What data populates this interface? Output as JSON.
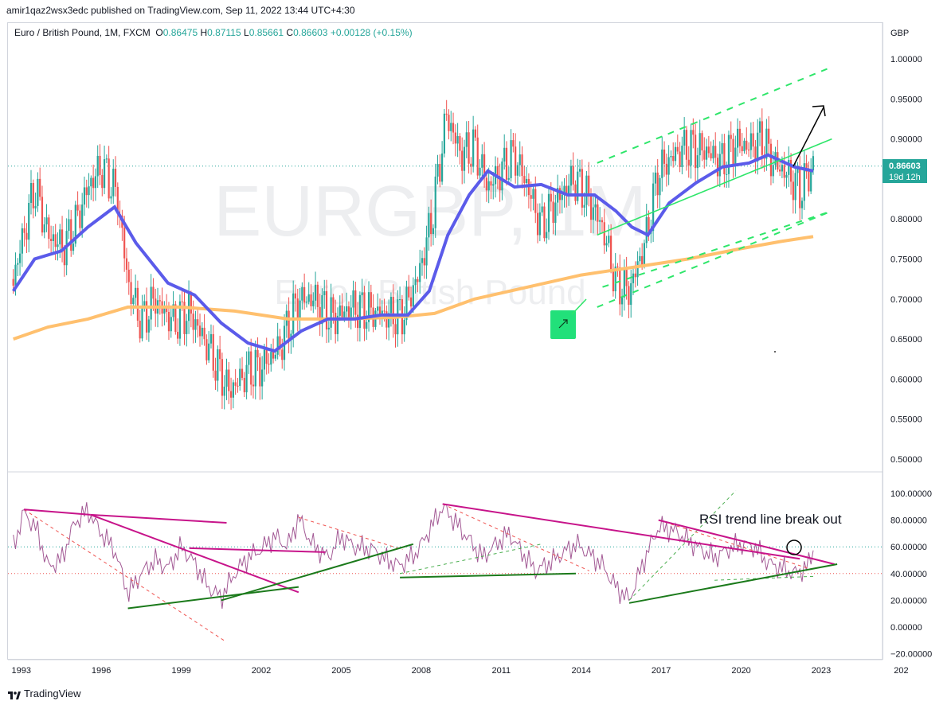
{
  "header": {
    "published": "amir1qaz2wsx3edc published on TradingView.com, Sep 11, 2022 13:44 UTC+4:30"
  },
  "symbol": {
    "name": "Euro / British Pound, 1M, FXCM",
    "o_label": "O",
    "o": "0.86475",
    "h_label": "H",
    "h": "0.87115",
    "l_label": "L",
    "l": "0.85661",
    "c_label": "C",
    "c": "0.86603",
    "change": "+0.00128 (+0.15%)"
  },
  "watermark": {
    "ticker": "EURGBP, 1M",
    "description": "Euro / British Pound"
  },
  "price_axis": {
    "currency": "GBP",
    "ticks": [
      "1.00000",
      "0.95000",
      "0.90000",
      "0.85000",
      "0.80000",
      "0.75000",
      "0.70000",
      "0.65000",
      "0.60000",
      "0.55000",
      "0.50000"
    ],
    "last_price": "0.86603",
    "countdown": "19d 12h"
  },
  "rsi_axis": {
    "ticks": [
      "100.00000",
      "80.00000",
      "60.00000",
      "40.00000",
      "20.00000",
      "0.00000",
      "−20.00000"
    ]
  },
  "time_axis": {
    "ticks": [
      "1993",
      "1996",
      "1999",
      "2002",
      "2005",
      "2008",
      "2011",
      "2014",
      "2017",
      "2020",
      "2023",
      "202"
    ]
  },
  "annotation": {
    "text": "RSI trend line break out"
  },
  "footer": {
    "brand": "TradingView"
  },
  "colors": {
    "up": "#26a69a",
    "down": "#ef5350",
    "ma_fast": "#5b5bea",
    "ma_slow": "#ffc06e",
    "channel": "#2ee66a",
    "rsi_line": "#a35a95",
    "trend_magenta": "#c7148a",
    "trend_green": "#1b7a1b",
    "label_bg": "#26a69a"
  },
  "chart_data": [
    {
      "type": "candlestick",
      "title": "Euro / British Pound, 1M, FXCM",
      "ylabel": "GBP",
      "ylim": [
        0.48,
        1.05
      ],
      "ma_periods_note": "",
      "price_path": [
        [
          1992.7,
          0.725
        ],
        [
          1993.5,
          0.84
        ],
        [
          1994.0,
          0.78
        ],
        [
          1994.6,
          0.765
        ],
        [
          1995.0,
          0.79
        ],
        [
          1995.5,
          0.84
        ],
        [
          1996.0,
          0.865
        ],
        [
          1996.6,
          0.83
        ],
        [
          1997.0,
          0.72
        ],
        [
          1997.5,
          0.67
        ],
        [
          1998.0,
          0.7
        ],
        [
          1998.7,
          0.67
        ],
        [
          1999.3,
          0.685
        ],
        [
          2000.0,
          0.64
        ],
        [
          2000.8,
          0.585
        ],
        [
          2001.5,
          0.61
        ],
        [
          2002.0,
          0.615
        ],
        [
          2002.7,
          0.64
        ],
        [
          2003.4,
          0.7
        ],
        [
          2004.0,
          0.7
        ],
        [
          2004.7,
          0.675
        ],
        [
          2005.4,
          0.69
        ],
        [
          2006.0,
          0.685
        ],
        [
          2006.7,
          0.68
        ],
        [
          2007.3,
          0.68
        ],
        [
          2007.9,
          0.73
        ],
        [
          2008.4,
          0.8
        ],
        [
          2008.95,
          0.93
        ],
        [
          2009.5,
          0.88
        ],
        [
          2010.0,
          0.89
        ],
        [
          2010.5,
          0.84
        ],
        [
          2011.0,
          0.86
        ],
        [
          2011.5,
          0.88
        ],
        [
          2012.0,
          0.84
        ],
        [
          2012.5,
          0.79
        ],
        [
          2013.0,
          0.82
        ],
        [
          2013.7,
          0.85
        ],
        [
          2014.2,
          0.83
        ],
        [
          2014.8,
          0.79
        ],
        [
          2015.3,
          0.72
        ],
        [
          2015.8,
          0.71
        ],
        [
          2016.4,
          0.77
        ],
        [
          2016.9,
          0.86
        ],
        [
          2017.5,
          0.88
        ],
        [
          2018.0,
          0.89
        ],
        [
          2018.7,
          0.885
        ],
        [
          2019.3,
          0.87
        ],
        [
          2019.8,
          0.895
        ],
        [
          2020.3,
          0.89
        ],
        [
          2020.8,
          0.9
        ],
        [
          2021.2,
          0.87
        ],
        [
          2021.8,
          0.855
        ],
        [
          2022.2,
          0.835
        ],
        [
          2022.7,
          0.866
        ]
      ],
      "ma_fast": [
        [
          1992.7,
          0.71
        ],
        [
          1993.5,
          0.75
        ],
        [
          1994.5,
          0.76
        ],
        [
          1995.5,
          0.79
        ],
        [
          1996.5,
          0.815
        ],
        [
          1997.3,
          0.77
        ],
        [
          1998.5,
          0.72
        ],
        [
          1999.5,
          0.705
        ],
        [
          2000.5,
          0.67
        ],
        [
          2001.5,
          0.645
        ],
        [
          2002.5,
          0.635
        ],
        [
          2003.5,
          0.66
        ],
        [
          2004.5,
          0.675
        ],
        [
          2005.5,
          0.675
        ],
        [
          2006.5,
          0.68
        ],
        [
          2007.5,
          0.68
        ],
        [
          2008.3,
          0.71
        ],
        [
          2009.0,
          0.78
        ],
        [
          2009.8,
          0.83
        ],
        [
          2010.5,
          0.86
        ],
        [
          2011.5,
          0.84
        ],
        [
          2012.5,
          0.843
        ],
        [
          2013.5,
          0.83
        ],
        [
          2014.5,
          0.83
        ],
        [
          2015.3,
          0.81
        ],
        [
          2015.9,
          0.79
        ],
        [
          2016.5,
          0.78
        ],
        [
          2017.3,
          0.82
        ],
        [
          2018.3,
          0.845
        ],
        [
          2019.3,
          0.865
        ],
        [
          2020.3,
          0.87
        ],
        [
          2021.0,
          0.88
        ],
        [
          2022.0,
          0.865
        ],
        [
          2022.7,
          0.86
        ]
      ],
      "ma_slow": [
        [
          1992.7,
          0.65
        ],
        [
          1994.0,
          0.665
        ],
        [
          1995.5,
          0.675
        ],
        [
          1997.0,
          0.69
        ],
        [
          1999.0,
          0.69
        ],
        [
          2001.0,
          0.685
        ],
        [
          2003.0,
          0.675
        ],
        [
          2005.0,
          0.675
        ],
        [
          2007.0,
          0.677
        ],
        [
          2008.5,
          0.682
        ],
        [
          2010.0,
          0.7
        ],
        [
          2012.0,
          0.715
        ],
        [
          2014.0,
          0.73
        ],
        [
          2016.0,
          0.74
        ],
        [
          2018.0,
          0.75
        ],
        [
          2020.0,
          0.763
        ],
        [
          2021.5,
          0.772
        ],
        [
          2022.7,
          0.778
        ]
      ],
      "channel": {
        "upper": [
          [
            2014.6,
            0.87
          ],
          [
            2023.4,
            0.99
          ]
        ],
        "middle": [
          [
            2014.6,
            0.78
          ],
          [
            2023.4,
            0.9
          ]
        ],
        "lower": [
          [
            2014.6,
            0.69
          ],
          [
            2023.4,
            0.81
          ]
        ]
      },
      "last_close": 0.86603
    },
    {
      "type": "line",
      "title": "",
      "ylim": [
        -25,
        105
      ],
      "levels": [
        60,
        40
      ],
      "rsi": [
        [
          1992.7,
          60
        ],
        [
          1993.1,
          86
        ],
        [
          1993.6,
          72
        ],
        [
          1994.0,
          45
        ],
        [
          1994.5,
          50
        ],
        [
          1995.0,
          78
        ],
        [
          1995.5,
          87
        ],
        [
          1996.0,
          70
        ],
        [
          1996.5,
          58
        ],
        [
          1997.0,
          25
        ],
        [
          1997.5,
          40
        ],
        [
          1998.0,
          50
        ],
        [
          1998.5,
          44
        ],
        [
          1999.0,
          60
        ],
        [
          1999.5,
          48
        ],
        [
          2000.0,
          30
        ],
        [
          2000.5,
          22
        ],
        [
          2001.0,
          40
        ],
        [
          2001.5,
          52
        ],
        [
          2002.0,
          58
        ],
        [
          2002.5,
          68
        ],
        [
          2003.0,
          60
        ],
        [
          2003.4,
          82
        ],
        [
          2003.9,
          62
        ],
        [
          2004.5,
          52
        ],
        [
          2005.0,
          68
        ],
        [
          2005.5,
          60
        ],
        [
          2006.2,
          58
        ],
        [
          2006.7,
          50
        ],
        [
          2007.2,
          46
        ],
        [
          2007.8,
          55
        ],
        [
          2008.3,
          72
        ],
        [
          2008.8,
          90
        ],
        [
          2009.3,
          78
        ],
        [
          2009.8,
          65
        ],
        [
          2010.3,
          52
        ],
        [
          2010.8,
          62
        ],
        [
          2011.3,
          70
        ],
        [
          2011.8,
          55
        ],
        [
          2012.3,
          42
        ],
        [
          2012.8,
          48
        ],
        [
          2013.3,
          55
        ],
        [
          2013.8,
          62
        ],
        [
          2014.3,
          55
        ],
        [
          2014.8,
          46
        ],
        [
          2015.3,
          30
        ],
        [
          2015.8,
          20
        ],
        [
          2016.4,
          52
        ],
        [
          2016.9,
          75
        ],
        [
          2017.5,
          72
        ],
        [
          2018.0,
          65
        ],
        [
          2018.5,
          58
        ],
        [
          2019.0,
          52
        ],
        [
          2019.5,
          58
        ],
        [
          2020.0,
          62
        ],
        [
          2020.5,
          60
        ],
        [
          2021.0,
          48
        ],
        [
          2021.5,
          44
        ],
        [
          2022.0,
          40
        ],
        [
          2022.5,
          45
        ],
        [
          2022.7,
          58
        ]
      ],
      "trendlines_magenta": [
        [
          [
            1993.1,
            88
          ],
          [
            1995.6,
            84
          ]
        ],
        [
          [
            1995.6,
            84
          ],
          [
            2000.7,
            78
          ]
        ],
        [
          [
            1995.6,
            84
          ],
          [
            2003.4,
            26
          ]
        ],
        [
          [
            1999.3,
            59
          ],
          [
            2004.4,
            56
          ]
        ],
        [
          [
            2008.8,
            92
          ],
          [
            2022.2,
            51
          ]
        ],
        [
          [
            2016.9,
            80
          ],
          [
            2023.5,
            47
          ]
        ]
      ],
      "trendlines_green": [
        [
          [
            1997.0,
            14
          ],
          [
            2003.4,
            30
          ]
        ],
        [
          [
            2000.5,
            20
          ],
          [
            2007.7,
            62
          ]
        ],
        [
          [
            2007.2,
            37
          ],
          [
            2013.8,
            40
          ]
        ],
        [
          [
            2015.8,
            18
          ],
          [
            2023.6,
            47
          ]
        ]
      ],
      "trendlines_dashed_red": [
        [
          [
            1993.1,
            88
          ],
          [
            2000.6,
            -10
          ]
        ],
        [
          [
            2003.4,
            82
          ],
          [
            2007.3,
            58
          ]
        ],
        [
          [
            2008.8,
            92
          ],
          [
            2014.3,
            42
          ]
        ],
        [
          [
            2016.9,
            80
          ],
          [
            2022.5,
            44
          ]
        ]
      ],
      "trendlines_dashed_green": [
        [
          [
            2007.2,
            40
          ],
          [
            2012.5,
            62
          ]
        ],
        [
          [
            2015.8,
            20
          ],
          [
            2019.8,
            102
          ]
        ],
        [
          [
            2019.0,
            35
          ],
          [
            2022.8,
            38
          ]
        ]
      ]
    }
  ]
}
